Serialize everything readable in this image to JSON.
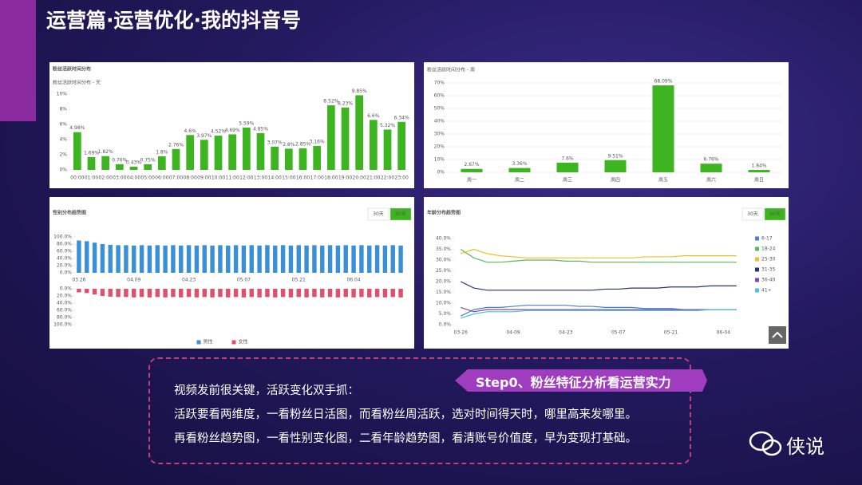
{
  "header": {
    "title": "运营篇·运营优化·我的抖音号"
  },
  "chart_data": [
    {
      "type": "bar",
      "title": "粉丝活跃时间分布",
      "subtitle": "粉丝活跃时间分布 - 天",
      "categories": [
        "00:00",
        "01:00",
        "02:00",
        "03:00",
        "04:00",
        "05:00",
        "06:00",
        "07:00",
        "08:00",
        "09:00",
        "10:00",
        "11:00",
        "12:00",
        "13:00",
        "14:00",
        "15:00",
        "16:00",
        "17:00",
        "18:00",
        "19:00",
        "20:00",
        "21:00",
        "22:00",
        "23:00"
      ],
      "values": [
        4.98,
        1.69,
        1.82,
        0.76,
        0.43,
        0.75,
        1.8,
        2.76,
        4.6,
        3.97,
        4.52,
        4.69,
        5.59,
        4.85,
        3.07,
        2.8,
        2.85,
        3.16,
        8.52,
        8.23,
        9.85,
        6.6,
        5.32,
        6.34
      ],
      "value_labels": [
        "4.98%",
        "1.69%",
        "1.82%",
        "0.76%",
        "0.43%",
        "0.75%",
        "1.8%",
        "2.76%",
        "4.6%",
        "3.97%",
        "4.52%",
        "4.69%",
        "5.59%",
        "4.85%",
        "3.07%",
        "2.8%",
        "2.85%",
        "3.16%",
        "8.52%",
        "8.23%",
        "9.85%",
        "6.6%",
        "5.32%",
        "6.34%"
      ],
      "color": "#3cb521",
      "ylim": [
        0,
        10
      ],
      "yticks": [
        {
          "value": 0,
          "label": "0%"
        },
        {
          "value": 2,
          "label": "2%"
        },
        {
          "value": 4,
          "label": "4%"
        },
        {
          "value": 6,
          "label": "6%"
        },
        {
          "value": 8,
          "label": "8%"
        },
        {
          "value": 10,
          "label": "10%"
        }
      ],
      "grid": false
    },
    {
      "type": "bar",
      "subtitle": "粉丝活跃时间分布 - 周",
      "categories": [
        "周一",
        "周二",
        "周三",
        "周四",
        "周五",
        "周六",
        "周日"
      ],
      "values": [
        2.67,
        3.36,
        7.6,
        9.51,
        68.09,
        6.76,
        1.84
      ],
      "value_labels": [
        "2.67%",
        "3.36%",
        "7.6%",
        "9.51%",
        "68.09%",
        "6.76%",
        "1.84%"
      ],
      "color": "#3cb521",
      "ylim": [
        0,
        70
      ],
      "yticks": [
        {
          "value": 0,
          "label": "0%"
        },
        {
          "value": 10,
          "label": "10%"
        },
        {
          "value": 20,
          "label": "20%"
        },
        {
          "value": 30,
          "label": "30%"
        },
        {
          "value": 40,
          "label": "40%"
        },
        {
          "value": 50,
          "label": "50%"
        },
        {
          "value": 60,
          "label": "60%"
        },
        {
          "value": 70,
          "label": "70%"
        }
      ],
      "grid": true
    },
    {
      "type": "bar",
      "title": "性别分布趋势图",
      "buttons": [
        "30天",
        "90天"
      ],
      "categories": [
        "03.26",
        null,
        null,
        null,
        null,
        null,
        null,
        "04.09",
        null,
        null,
        null,
        null,
        null,
        null,
        "04.23",
        null,
        null,
        null,
        null,
        null,
        null,
        "05.07",
        null,
        null,
        null,
        null,
        null,
        null,
        "05.21",
        null,
        null,
        null,
        null,
        null,
        null,
        "06.04",
        null,
        null,
        null,
        null,
        null,
        null
      ],
      "series": [
        {
          "name": "男性",
          "color": "#3a8fd9",
          "values": [
            90,
            88,
            84,
            80,
            78,
            77,
            77,
            76,
            77,
            76,
            77,
            76,
            77,
            76,
            77,
            76,
            77,
            76,
            77,
            76,
            77,
            76,
            77,
            76,
            77,
            76,
            77,
            76,
            77,
            76,
            77,
            76,
            77,
            76,
            77,
            76,
            77,
            76,
            77,
            76,
            77,
            76
          ]
        },
        {
          "name": "女性",
          "color": "#e0506a",
          "axis": "y2",
          "values": [
            10,
            12,
            16,
            20,
            22,
            23,
            23,
            24,
            23,
            24,
            23,
            24,
            23,
            24,
            23,
            24,
            23,
            24,
            23,
            24,
            23,
            24,
            23,
            24,
            23,
            24,
            23,
            24,
            23,
            24,
            23,
            24,
            23,
            24,
            23,
            24,
            23,
            24,
            23,
            24,
            23,
            24
          ]
        }
      ],
      "ylim": [
        0,
        100
      ],
      "yticks": [
        {
          "value": 0,
          "label": "0.0%"
        },
        {
          "value": 20,
          "label": "20.0%"
        },
        {
          "value": 40,
          "label": "40.0%"
        },
        {
          "value": 60,
          "label": "60.0%"
        },
        {
          "value": 80,
          "label": "80.0%"
        },
        {
          "value": 100,
          "label": "100.0%"
        }
      ],
      "y2lim": [
        100,
        0
      ],
      "y2ticks": [
        {
          "value": 0,
          "label": "0.0%"
        },
        {
          "value": 20,
          "label": "20.0%"
        },
        {
          "value": 40,
          "label": "40.0%"
        },
        {
          "value": 60,
          "label": "60.0%"
        },
        {
          "value": 80,
          "label": "80.0%"
        },
        {
          "value": 100,
          "label": "100.0%"
        }
      ],
      "grid": false,
      "legend": "bottom"
    },
    {
      "type": "line",
      "title": "年龄分布趋势图",
      "buttons": [
        "30天",
        "90天"
      ],
      "categories": [
        "03-26",
        null,
        null,
        null,
        "04-09",
        null,
        null,
        null,
        "04-23",
        null,
        null,
        null,
        "05-07",
        null,
        null,
        null,
        "05-21",
        null,
        null,
        null,
        "06-04",
        null
      ],
      "series": [
        {
          "name": "6-17",
          "color": "#4a7fd4",
          "values": [
            4,
            7,
            8,
            8,
            8.5,
            9,
            9,
            9,
            9,
            8.5,
            8.5,
            8,
            8,
            8,
            7.5,
            7.5,
            7.5,
            7,
            7,
            7,
            7,
            7
          ]
        },
        {
          "name": "18-24",
          "color": "#5cb85c",
          "values": [
            35,
            31,
            29,
            29,
            29.5,
            30,
            30,
            30,
            29.5,
            29.5,
            29,
            29,
            29,
            29,
            29,
            29,
            29,
            29,
            29,
            29,
            29,
            29
          ]
        },
        {
          "name": "25-30",
          "color": "#e6c229",
          "values": [
            33,
            35,
            33,
            32,
            31.5,
            31,
            31,
            31,
            31,
            31,
            31,
            31,
            31,
            31,
            31.5,
            31.5,
            31.5,
            32,
            32,
            32,
            32,
            32
          ]
        },
        {
          "name": "31-35",
          "color": "#2f2f7a",
          "values": [
            20,
            17,
            16,
            16,
            16,
            16,
            16,
            16,
            16,
            16,
            16,
            16.5,
            16.5,
            17,
            17,
            17,
            17.5,
            17.5,
            17.5,
            18,
            18,
            18
          ]
        },
        {
          "name": "36-40",
          "color": "#7a4bb0",
          "values": [
            8,
            6,
            7,
            7,
            7,
            7,
            7,
            7,
            7,
            7,
            7,
            7,
            7,
            7,
            7,
            7,
            7,
            7,
            7,
            7,
            7,
            7
          ]
        },
        {
          "name": "41+",
          "color": "#4ec1d6",
          "values": [
            3,
            5,
            6,
            6,
            6,
            6.5,
            6.5,
            6.5,
            6.5,
            6.5,
            6.5,
            6.5,
            6.5,
            6.5,
            6.5,
            6.5,
            6.5,
            6.5,
            6.5,
            7,
            7,
            7
          ]
        }
      ],
      "ylim": [
        0,
        40
      ],
      "yticks": [
        {
          "value": 0,
          "label": "0.0%"
        },
        {
          "value": 5,
          "label": "5.0%"
        },
        {
          "value": 10,
          "label": "10.0%"
        },
        {
          "value": 15,
          "label": "15.0%"
        },
        {
          "value": 20,
          "label": "20.0%"
        },
        {
          "value": 25,
          "label": "25.0%"
        },
        {
          "value": 30,
          "label": "30.0%"
        },
        {
          "value": 35,
          "label": "35.0%"
        },
        {
          "value": 40,
          "label": "40.0%"
        }
      ],
      "grid": false,
      "legend": "right"
    }
  ],
  "callout": {
    "step": "Step0、粉丝特征分析看运营实力",
    "lines": [
      "视频发前很关键，活跃变化双手抓：",
      "活跃要看两维度，一看粉丝日活图，而看粉丝周活跃，选对时间得天时，哪里高来发哪里。",
      "再看粉丝趋势图，一看性别变化图，二看年龄趋势图，看清账号价值度，早为变现打基础。"
    ]
  },
  "watermark": "侠说"
}
